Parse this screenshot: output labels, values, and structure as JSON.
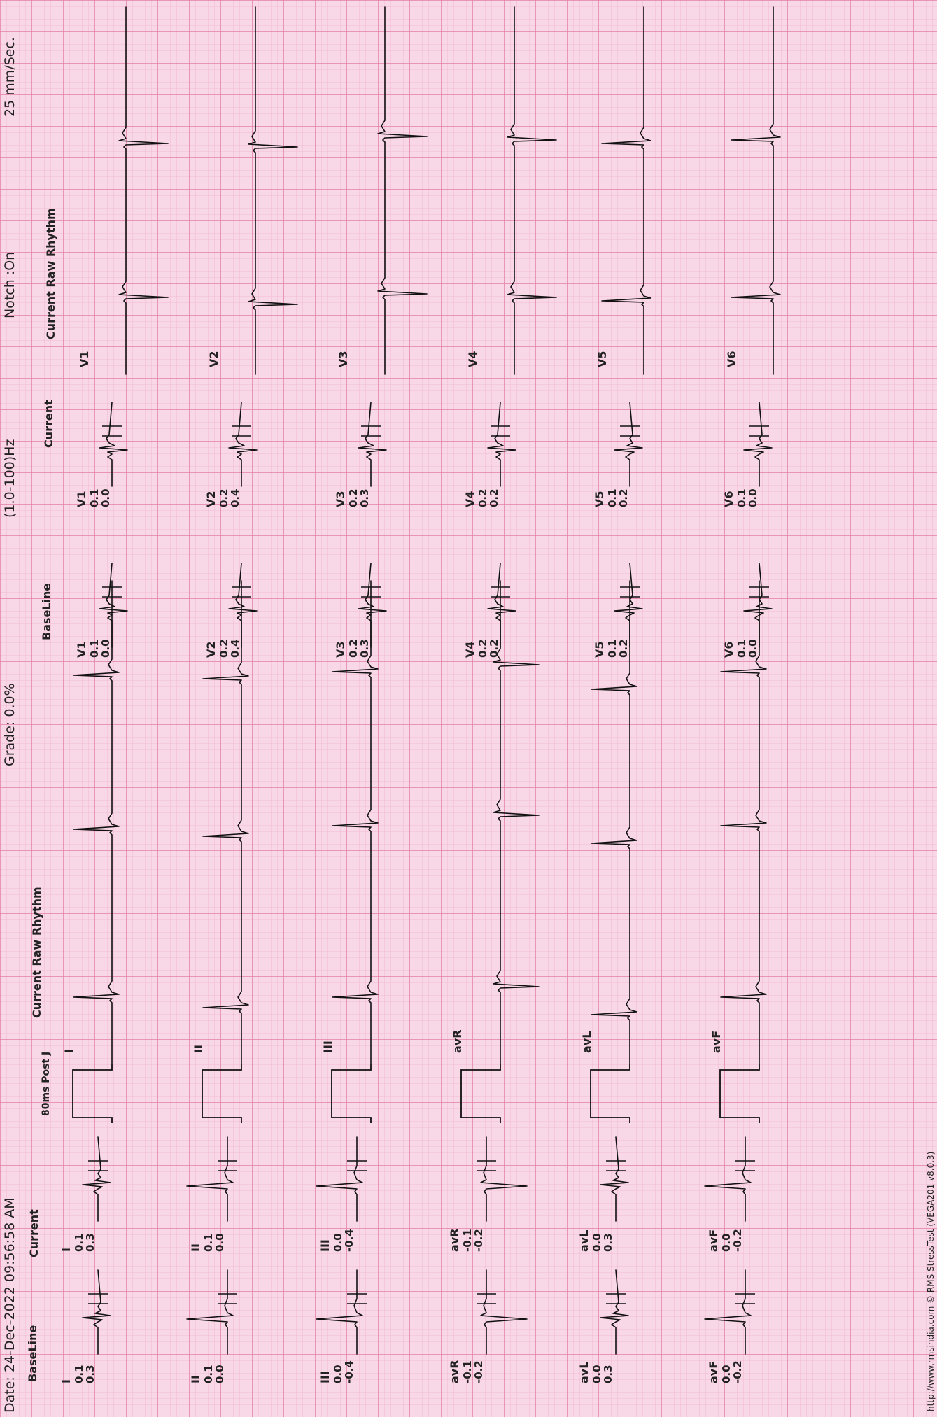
{
  "header": {
    "date": "Date: 24-Dec-2022 09:56:58 AM",
    "grade": "Grade: 0.0%",
    "filter": "(1.0-100)Hz",
    "notch": "Notch :On",
    "speed": "25 mm/Sec."
  },
  "footer": {
    "copyright": "http://www.rmsindia.com © RMS StressTest (VEGA201 v8.0.3)"
  },
  "limb_panel": {
    "baseline_title": "BaseLine",
    "current_title": "Current",
    "post_j_title": "80ms Post J",
    "rhythm_title": "Current Raw Rhythm",
    "baseline": [
      {
        "lead": "I",
        "v1": "0.1",
        "v2": "0.3"
      },
      {
        "lead": "II",
        "v1": "0.1",
        "v2": "0.0"
      },
      {
        "lead": "III",
        "v1": "0.0",
        "v2": "-0.4"
      },
      {
        "lead": "avR",
        "v1": "-0.1",
        "v2": "-0.2"
      },
      {
        "lead": "avL",
        "v1": "0.0",
        "v2": "0.3"
      },
      {
        "lead": "avF",
        "v1": "0.0",
        "v2": "-0.2"
      }
    ],
    "current": [
      {
        "lead": "I",
        "v1": "0.1",
        "v2": "0.3"
      },
      {
        "lead": "II",
        "v1": "0.1",
        "v2": "0.0"
      },
      {
        "lead": "III",
        "v1": "0.0",
        "v2": "-0.4"
      },
      {
        "lead": "avR",
        "v1": "-0.1",
        "v2": "-0.2"
      },
      {
        "lead": "avL",
        "v1": "0.0",
        "v2": "0.3"
      },
      {
        "lead": "avF",
        "v1": "0.0",
        "v2": "-0.2"
      }
    ],
    "rhythm_leads": [
      "I",
      "II",
      "III",
      "avR",
      "avL",
      "avF"
    ]
  },
  "chest_panel": {
    "baseline_title": "BaseLine",
    "current_title": "Current",
    "rhythm_title": "Current Raw Rhythm",
    "baseline": [
      {
        "lead": "V1",
        "v1": "0.1",
        "v2": "0.0"
      },
      {
        "lead": "V2",
        "v1": "0.2",
        "v2": "0.4"
      },
      {
        "lead": "V3",
        "v1": "0.2",
        "v2": "0.3"
      },
      {
        "lead": "V4",
        "v1": "0.2",
        "v2": "0.2"
      },
      {
        "lead": "V5",
        "v1": "0.1",
        "v2": "0.2"
      },
      {
        "lead": "V6",
        "v1": "0.1",
        "v2": "0.0"
      }
    ],
    "current": [
      {
        "lead": "V1",
        "v1": "0.1",
        "v2": "0.0"
      },
      {
        "lead": "V2",
        "v1": "0.2",
        "v2": "0.4"
      },
      {
        "lead": "V3",
        "v1": "0.2",
        "v2": "0.3"
      },
      {
        "lead": "V4",
        "v1": "0.2",
        "v2": "0.2"
      },
      {
        "lead": "V5",
        "v1": "0.1",
        "v2": "0.2"
      },
      {
        "lead": "V6",
        "v1": "0.1",
        "v2": "0.0"
      }
    ],
    "rhythm_leads": [
      "V1",
      "V2",
      "V3",
      "V4",
      "V5",
      "V6"
    ]
  },
  "colors": {
    "paper": "#f8d7e6",
    "grid_minor": "#f0b3cc",
    "grid_major": "#e27fa6",
    "trace": "#111111"
  }
}
